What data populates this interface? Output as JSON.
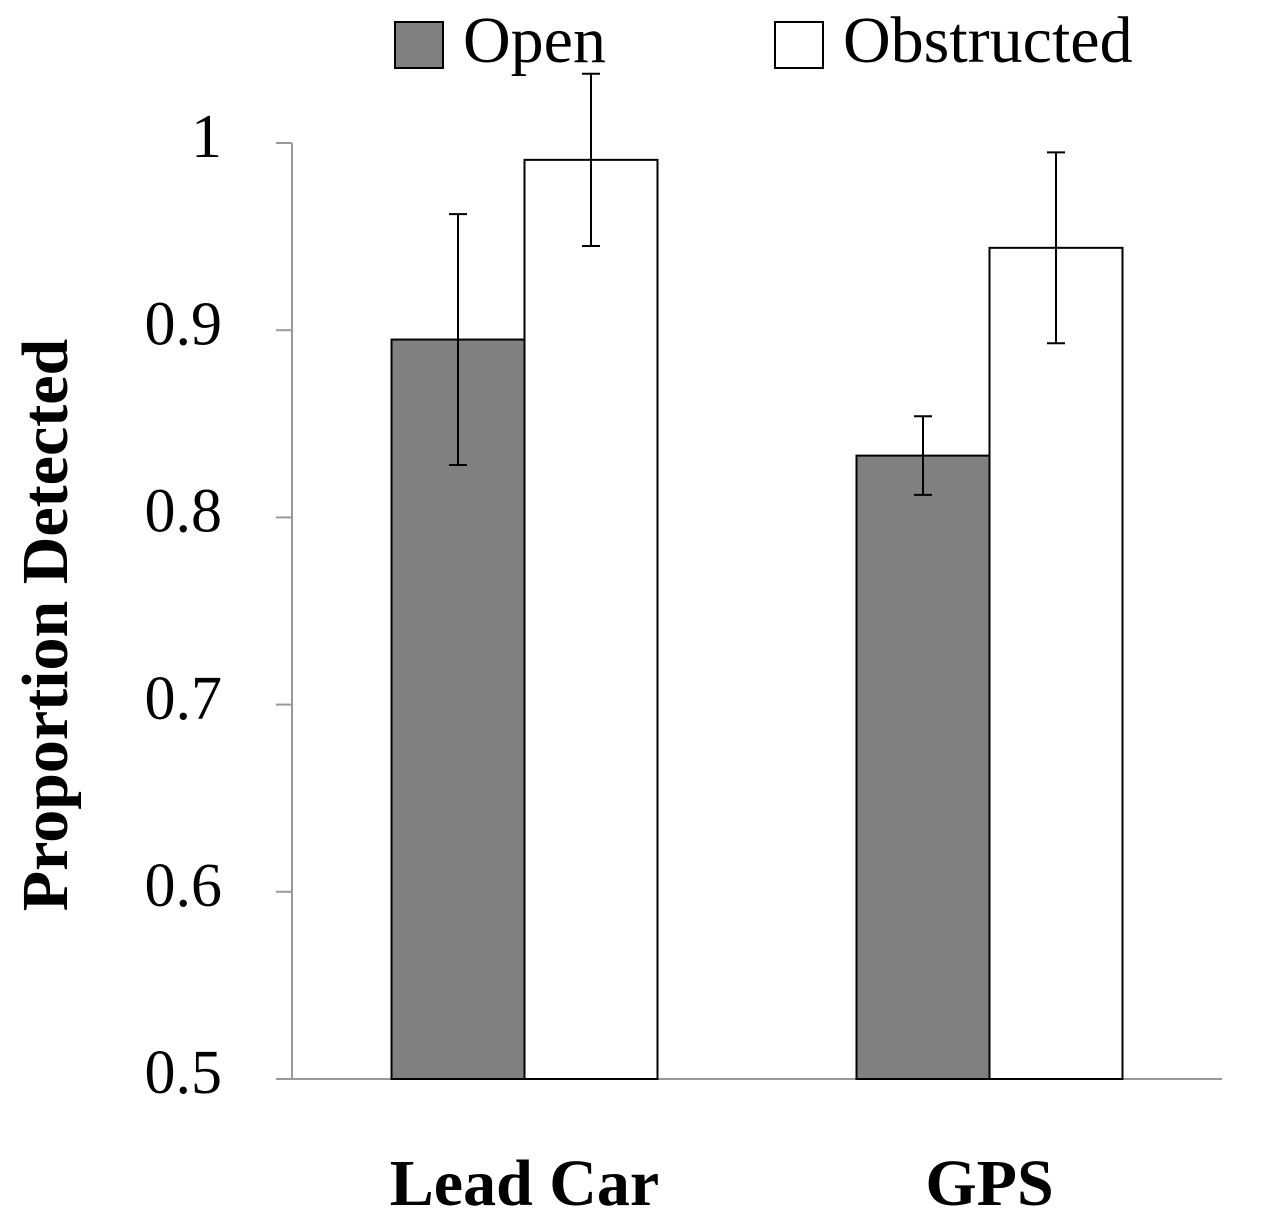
{
  "chart_data": {
    "type": "bar",
    "y_label": "Proportion  Detected",
    "categories": [
      "Lead Car",
      "GPS"
    ],
    "series": [
      {
        "name": "Open",
        "color": "#808080",
        "values": [
          0.895,
          0.833
        ],
        "errors": [
          0.067,
          0.021
        ]
      },
      {
        "name": "Obstructed",
        "color": "#ffffff",
        "values": [
          0.991,
          0.944
        ],
        "errors": [
          0.046,
          0.051
        ]
      }
    ],
    "ylim": [
      0.5,
      1
    ],
    "yticks": [
      0.5,
      0.6,
      0.7,
      0.8,
      0.9,
      1
    ],
    "grid": false
  }
}
